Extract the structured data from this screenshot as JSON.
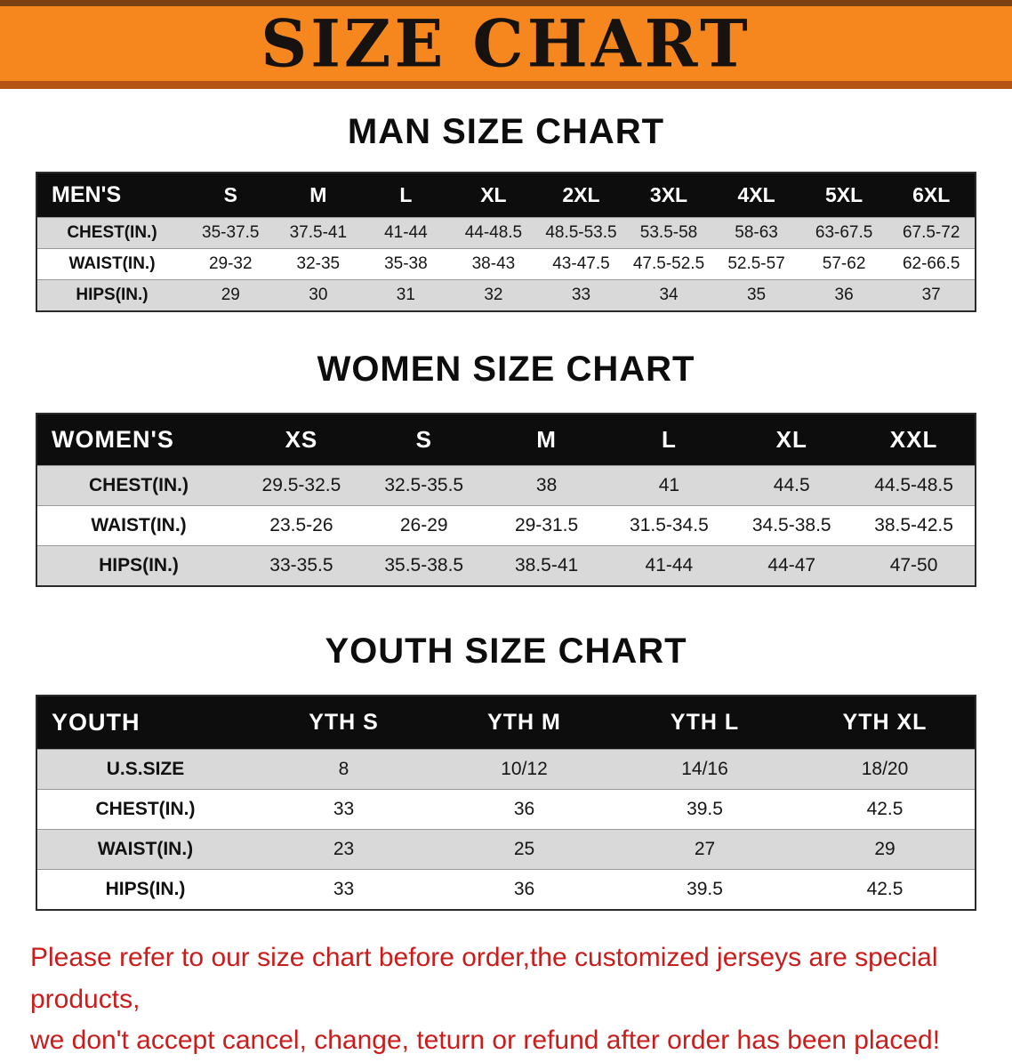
{
  "banner": {
    "title": "SIZE CHART",
    "bg_color": "#f6871f",
    "title_color": "#151210"
  },
  "colors": {
    "table_header_bg": "#0d0d0d",
    "row_stripe": "#d9d9d9",
    "footer_text": "#cb1c1c"
  },
  "sections": [
    {
      "heading": "MAN SIZE CHART",
      "table": {
        "header": [
          "MEN'S",
          "S",
          "M",
          "L",
          "XL",
          "2XL",
          "3XL",
          "4XL",
          "5XL",
          "6XL"
        ],
        "rows": [
          [
            "CHEST(IN.)",
            "35-37.5",
            "37.5-41",
            "41-44",
            "44-48.5",
            "48.5-53.5",
            "53.5-58",
            "58-63",
            "63-67.5",
            "67.5-72"
          ],
          [
            "WAIST(IN.)",
            "29-32",
            "32-35",
            "35-38",
            "38-43",
            "43-47.5",
            "47.5-52.5",
            "52.5-57",
            "57-62",
            "62-66.5"
          ],
          [
            "HIPS(IN.)",
            "29",
            "30",
            "31",
            "32",
            "33",
            "34",
            "35",
            "36",
            "37"
          ]
        ]
      }
    },
    {
      "heading": "WOMEN SIZE CHART",
      "table": {
        "header": [
          "WOMEN'S",
          "XS",
          "S",
          "M",
          "L",
          "XL",
          "XXL"
        ],
        "rows": [
          [
            "CHEST(IN.)",
            "29.5-32.5",
            "32.5-35.5",
            "38",
            "41",
            "44.5",
            "44.5-48.5"
          ],
          [
            "WAIST(IN.)",
            "23.5-26",
            "26-29",
            "29-31.5",
            "31.5-34.5",
            "34.5-38.5",
            "38.5-42.5"
          ],
          [
            "HIPS(IN.)",
            "33-35.5",
            "35.5-38.5",
            "38.5-41",
            "41-44",
            "44-47",
            "47-50"
          ]
        ]
      }
    },
    {
      "heading": "YOUTH SIZE CHART",
      "table": {
        "header": [
          "YOUTH",
          "YTH S",
          "YTH M",
          "YTH L",
          "YTH XL"
        ],
        "rows": [
          [
            "U.S.SIZE",
            "8",
            "10/12",
            "14/16",
            "18/20"
          ],
          [
            "CHEST(IN.)",
            "33",
            "36",
            "39.5",
            "42.5"
          ],
          [
            "WAIST(IN.)",
            "23",
            "25",
            "27",
            "29"
          ],
          [
            "HIPS(IN.)",
            "33",
            "36",
            "39.5",
            "42.5"
          ]
        ]
      }
    }
  ],
  "footer": {
    "line1": "Please refer to our size chart before order,the customized jerseys are special products,",
    "line2": "we don't accept cancel, change, teturn or refund after order has been placed!"
  }
}
